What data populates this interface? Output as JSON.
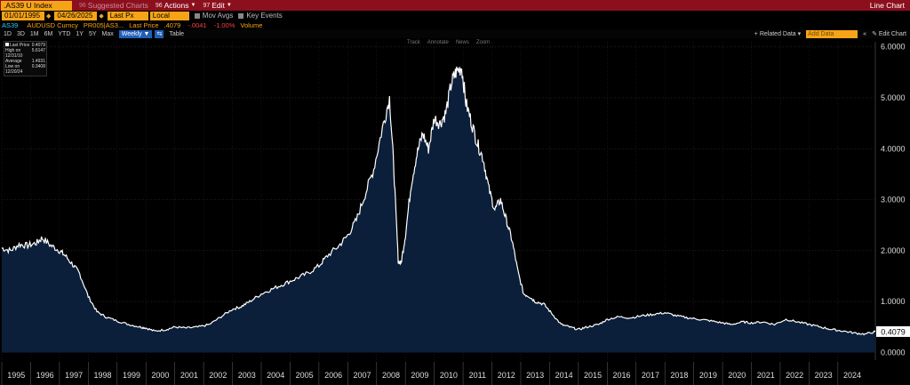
{
  "toolbar": {
    "ticker": ".AS39 U Index",
    "suggested": "Suggested Charts",
    "suggested_num": "96",
    "actions": "Actions",
    "actions_num": "96",
    "edit": "Edit",
    "edit_num": "97",
    "chart_type": "Line Chart"
  },
  "controls": {
    "start_date": "01/01/1995",
    "end_date": "04/26/2025",
    "field": "Last Px",
    "currency": "Local CCY",
    "mov_avgs": "Mov Avgs",
    "key_events": "Key Events"
  },
  "security": {
    "name": "AS39",
    "sec2": "AUDUSD Curncy",
    "sec3": "PR005|AS3...",
    "price_label": "Last Price",
    "price": ".4079",
    "change": "-.0041",
    "change_pct": "-1.00%",
    "volume": "Volume"
  },
  "periods": [
    "1D",
    "3D",
    "1M",
    "6M",
    "YTD",
    "1Y",
    "5Y",
    "Max"
  ],
  "period_selected": "Weekly",
  "table_label": "Table",
  "right_tools": {
    "related": "Related Data",
    "add": "Add Data",
    "edit_chart": "Edit Chart"
  },
  "chart_tools": [
    "Track",
    "Annotate",
    "News",
    "Zoom"
  ],
  "legend": [
    {
      "label": "Last Price",
      "value": "0.4079"
    },
    {
      "label": "High on 12/31/10",
      "value": "5.6147"
    },
    {
      "label": "Average",
      "value": "1.4931"
    },
    {
      "label": "Low on 12/20/24",
      "value": "0.3408"
    }
  ],
  "colors": {
    "accent": "#f6a417",
    "bar": "#8c0f1e",
    "line": "#ffffff",
    "fill": "#0b1e3a",
    "last_tag": "#ffffff"
  },
  "chart_data": {
    "type": "area",
    "ylim": [
      -0.15,
      6.1
    ],
    "yticks": [
      "0.0000",
      "1.0000",
      "2.0000",
      "3.0000",
      "4.0000",
      "5.0000",
      "6.0000"
    ],
    "ytick_values": [
      0,
      1,
      2,
      3,
      4,
      5,
      6
    ],
    "xticks": [
      "1995",
      "1996",
      "1997",
      "1998",
      "1999",
      "2000",
      "2001",
      "2002",
      "2003",
      "2004",
      "2005",
      "2006",
      "2007",
      "2008",
      "2009",
      "2010",
      "2011",
      "2012",
      "2013",
      "2014",
      "2015",
      "2016",
      "2017",
      "2018",
      "2019",
      "2020",
      "2021",
      "2022",
      "2023",
      "2024"
    ],
    "last_value_label": "0.4079",
    "x": [
      1995.0,
      1995.3,
      1995.6,
      1995.9,
      1996.2,
      1996.4,
      1996.7,
      1997.0,
      1997.2,
      1997.5,
      1997.7,
      1998.0,
      1998.3,
      1998.6,
      1999.0,
      1999.4,
      1999.8,
      2000.0,
      2000.3,
      2000.7,
      2001.0,
      2001.4,
      2001.8,
      2002.2,
      2002.6,
      2003.0,
      2003.3,
      2003.6,
      2004.0,
      2004.4,
      2004.8,
      2005.2,
      2005.6,
      2006.0,
      2006.3,
      2006.7,
      2007.0,
      2007.3,
      2007.6,
      2007.9,
      2008.2,
      2008.45,
      2008.6,
      2008.75,
      2008.85,
      2009.0,
      2009.2,
      2009.4,
      2009.6,
      2009.8,
      2010.0,
      2010.2,
      2010.4,
      2010.6,
      2010.75,
      2010.95,
      2011.1,
      2011.3,
      2011.5,
      2011.7,
      2011.9,
      2012.1,
      2012.3,
      2012.5,
      2012.7,
      2012.9,
      2013.1,
      2013.3,
      2013.5,
      2013.8,
      2014.1,
      2014.4,
      2014.7,
      2015.0,
      2015.3,
      2015.7,
      2016.0,
      2016.4,
      2016.8,
      2017.2,
      2017.6,
      2018.0,
      2018.4,
      2018.8,
      2019.2,
      2019.6,
      2020.0,
      2020.3,
      2020.7,
      2021.0,
      2021.4,
      2021.8,
      2022.2,
      2022.6,
      2023.0,
      2023.4,
      2023.8,
      2024.2,
      2024.6,
      2024.95,
      2025.3
    ],
    "y": [
      2.05,
      2.0,
      2.12,
      2.1,
      2.15,
      2.25,
      2.1,
      2.0,
      1.9,
      1.7,
      1.55,
      1.1,
      0.8,
      0.7,
      0.62,
      0.55,
      0.5,
      0.48,
      0.42,
      0.45,
      0.5,
      0.48,
      0.5,
      0.55,
      0.7,
      0.85,
      0.9,
      1.0,
      1.15,
      1.25,
      1.35,
      1.45,
      1.55,
      1.7,
      1.9,
      2.1,
      2.3,
      2.6,
      3.1,
      3.6,
      4.4,
      5.0,
      3.6,
      1.8,
      1.75,
      2.3,
      3.3,
      3.9,
      4.3,
      4.0,
      4.6,
      4.5,
      4.7,
      5.3,
      5.5,
      5.6,
      4.9,
      4.5,
      4.1,
      3.8,
      3.2,
      2.8,
      3.0,
      2.6,
      2.2,
      1.6,
      1.15,
      1.1,
      1.0,
      0.95,
      0.75,
      0.55,
      0.5,
      0.45,
      0.5,
      0.55,
      0.65,
      0.7,
      0.68,
      0.72,
      0.75,
      0.78,
      0.72,
      0.68,
      0.65,
      0.62,
      0.58,
      0.55,
      0.6,
      0.58,
      0.6,
      0.55,
      0.65,
      0.6,
      0.55,
      0.5,
      0.45,
      0.42,
      0.38,
      0.36,
      0.41
    ]
  }
}
